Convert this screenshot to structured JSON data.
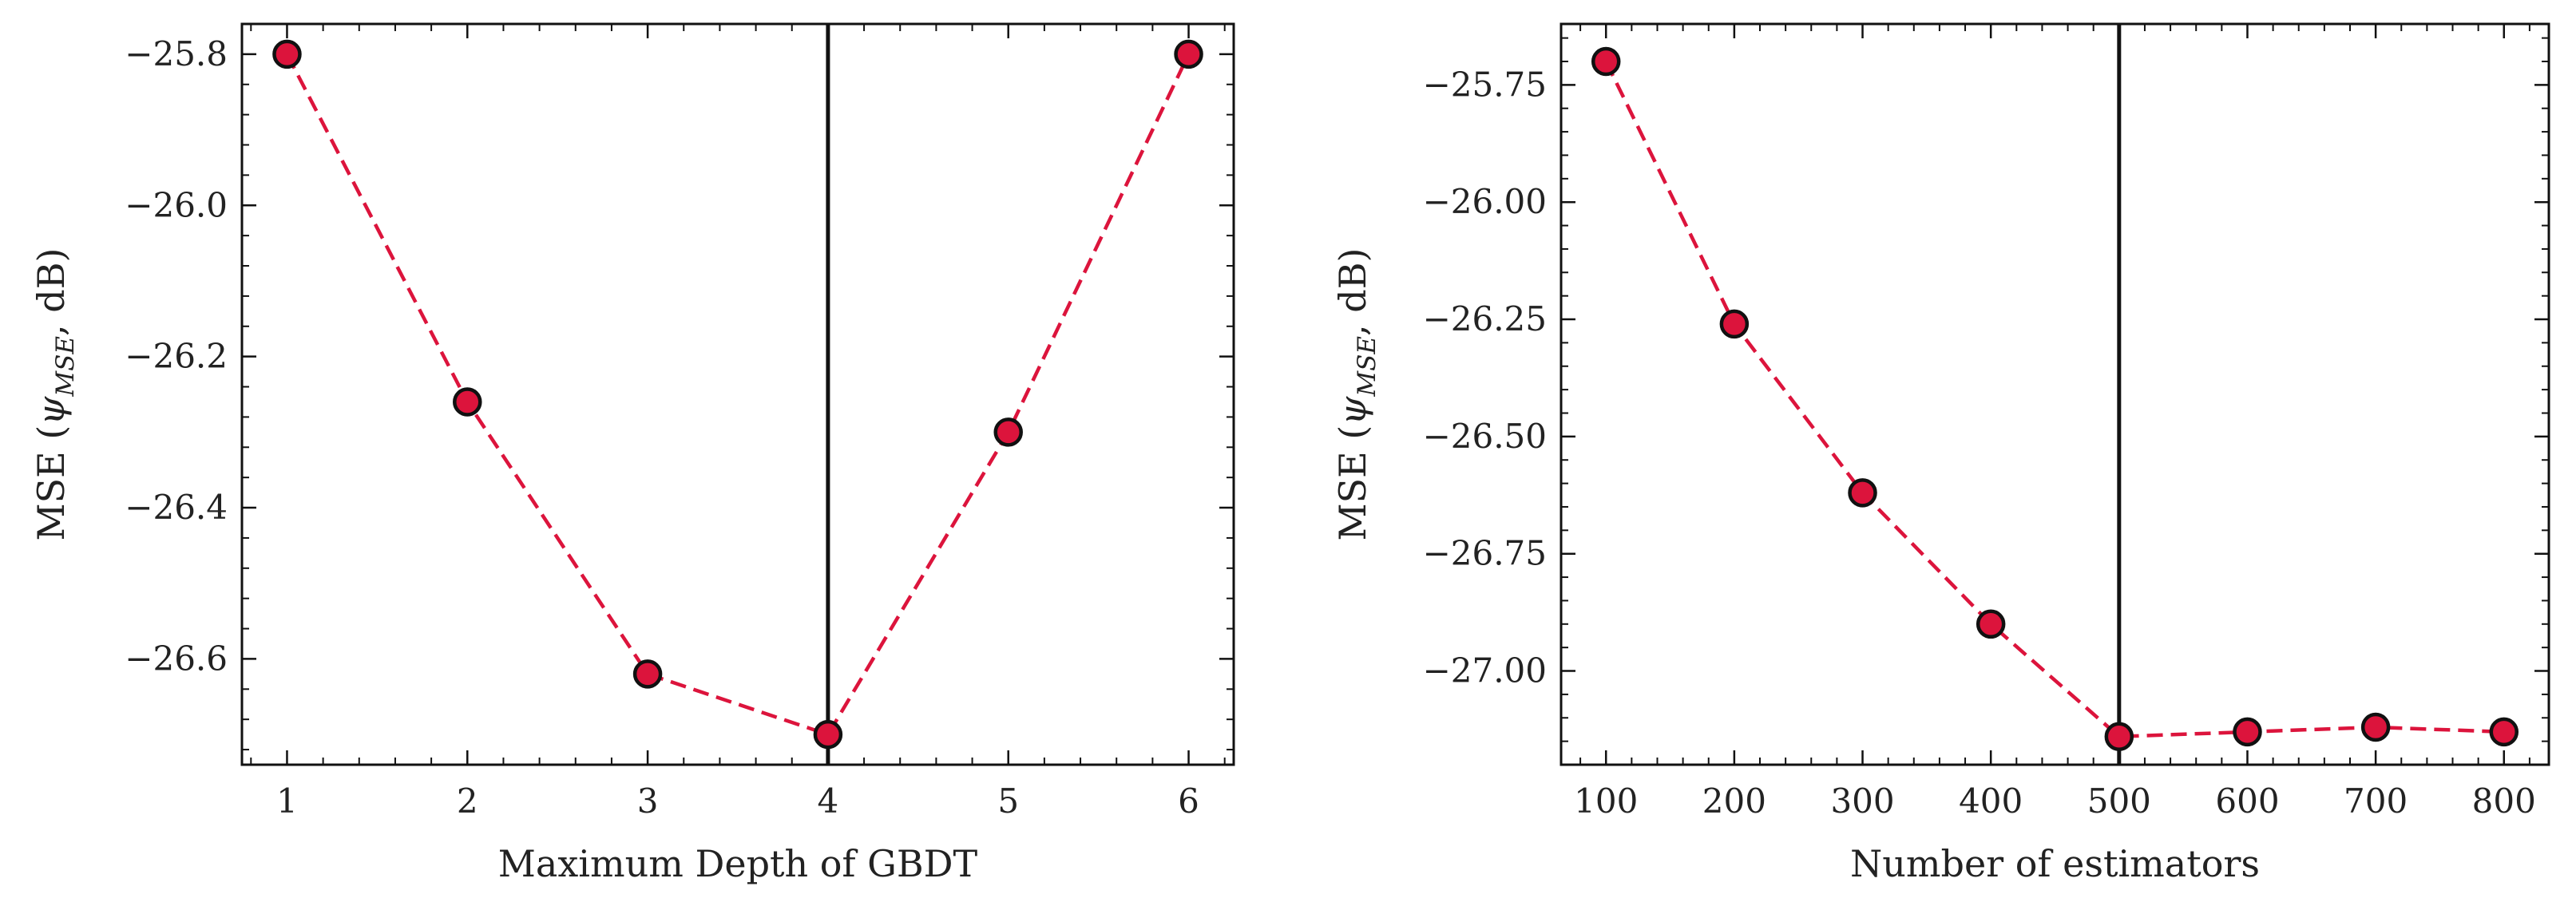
{
  "colors": {
    "line": "#dc143c",
    "marker_fill": "#dc143c",
    "marker_edge": "#111111",
    "vline": "#111111",
    "axes": "#111111"
  },
  "chart_data": [
    {
      "type": "line",
      "xlabel": "Maximum Depth of GBDT",
      "ylabel": {
        "prefix": "MSE (",
        "symbol": "ψ",
        "subscript": "MSE",
        "suffix": ", dB)"
      },
      "x": [
        1,
        2,
        3,
        4,
        5,
        6
      ],
      "values": [
        -25.8,
        -26.26,
        -26.62,
        -26.7,
        -26.3,
        -25.8
      ],
      "xlim": [
        0.75,
        6.25
      ],
      "ylim": [
        -26.74,
        -25.76
      ],
      "xticks": [
        1,
        2,
        3,
        4,
        5,
        6
      ],
      "xtick_labels": [
        "1",
        "2",
        "3",
        "4",
        "5",
        "6"
      ],
      "yticks": [
        -25.8,
        -26.0,
        -26.2,
        -26.4,
        -26.6
      ],
      "ytick_labels": [
        "−25.8",
        "−26.0",
        "−26.2",
        "−26.4",
        "−26.6"
      ],
      "x_minor_step": 0.2,
      "y_minor_step": 0.04,
      "vline_x": 4,
      "line_style": "dashed",
      "grid": false
    },
    {
      "type": "line",
      "xlabel": "Number of estimators",
      "ylabel": {
        "prefix": "MSE (",
        "symbol": "ψ",
        "subscript": "MSE",
        "suffix": ", dB)"
      },
      "x": [
        100,
        200,
        300,
        400,
        500,
        600,
        700,
        800
      ],
      "values": [
        -25.7,
        -26.26,
        -26.62,
        -26.9,
        -27.14,
        -27.13,
        -27.12,
        -27.13
      ],
      "xlim": [
        65,
        835
      ],
      "ylim": [
        -27.2,
        -25.62
      ],
      "xticks": [
        100,
        200,
        300,
        400,
        500,
        600,
        700,
        800
      ],
      "xtick_labels": [
        "100",
        "200",
        "300",
        "400",
        "500",
        "600",
        "700",
        "800"
      ],
      "yticks": [
        -25.75,
        -26.0,
        -26.25,
        -26.5,
        -26.75,
        -27.0
      ],
      "ytick_labels": [
        "−25.75",
        "−26.00",
        "−26.25",
        "−26.50",
        "−26.75",
        "−27.00"
      ],
      "x_minor_step": 20,
      "y_minor_step": 0.05,
      "vline_x": 500,
      "line_style": "dashed",
      "grid": false
    }
  ]
}
